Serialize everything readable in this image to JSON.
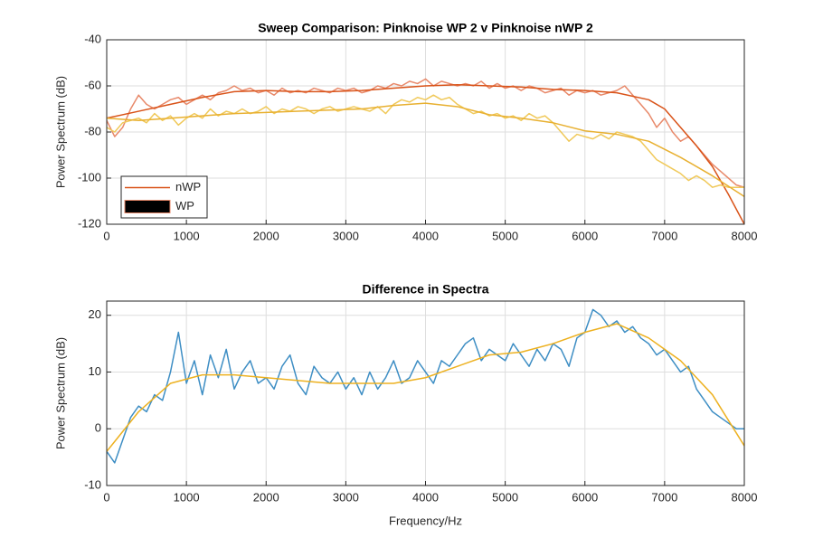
{
  "chart_data": [
    {
      "type": "line",
      "title": "Sweep Comparison: Pinknoise WP 2 v Pinknoise nWP 2",
      "ylabel": "Power Spectrum (dB)",
      "xlim": [
        0,
        8000
      ],
      "ylim": [
        -120,
        -40
      ],
      "xticks": [
        0,
        1000,
        2000,
        3000,
        4000,
        5000,
        6000,
        7000,
        8000
      ],
      "yticks": [
        -120,
        -100,
        -80,
        -60,
        -40
      ],
      "grid": true,
      "legend": "southwest",
      "series": [
        {
          "name": "nWP",
          "color": "#e8896a",
          "x": [
            0,
            100,
            200,
            300,
            400,
            500,
            600,
            700,
            800,
            900,
            1000,
            1100,
            1200,
            1300,
            1400,
            1500,
            1600,
            1700,
            1800,
            1900,
            2000,
            2100,
            2200,
            2300,
            2400,
            2500,
            2600,
            2700,
            2800,
            2900,
            3000,
            3100,
            3200,
            3300,
            3400,
            3500,
            3600,
            3700,
            3800,
            3900,
            4000,
            4100,
            4200,
            4300,
            4400,
            4500,
            4600,
            4700,
            4800,
            4900,
            5000,
            5100,
            5200,
            5300,
            5400,
            5500,
            5600,
            5700,
            5800,
            5900,
            6000,
            6100,
            6200,
            6300,
            6400,
            6500,
            6600,
            6700,
            6800,
            6900,
            7000,
            7100,
            7200,
            7300,
            7400,
            7500,
            7600,
            7700,
            7800,
            7900,
            8000
          ],
          "values": [
            -75,
            -82,
            -78,
            -70,
            -64,
            -68,
            -70,
            -68,
            -66,
            -65,
            -68,
            -66,
            -64,
            -66,
            -63,
            -62,
            -60,
            -62,
            -61,
            -63,
            -62,
            -64,
            -61,
            -63,
            -62,
            -63,
            -61,
            -62,
            -63,
            -61,
            -62,
            -61,
            -63,
            -62,
            -60,
            -61,
            -59,
            -60,
            -58,
            -59,
            -57,
            -60,
            -58,
            -59,
            -60,
            -59,
            -60,
            -58,
            -61,
            -59,
            -61,
            -60,
            -62,
            -60,
            -61,
            -63,
            -62,
            -61,
            -64,
            -62,
            -63,
            -62,
            -64,
            -63,
            -62,
            -60,
            -64,
            -68,
            -72,
            -78,
            -74,
            -80,
            -84,
            -82,
            -86,
            -90,
            -94,
            -97,
            -100,
            -103,
            -104
          ]
        },
        {
          "color": "#d95319",
          "x": [
            0,
            400,
            800,
            1200,
            1600,
            2000,
            2400,
            2800,
            3200,
            3600,
            4000,
            4400,
            4800,
            5200,
            5600,
            6000,
            6400,
            6800,
            7000,
            7200,
            7400,
            7600,
            7800,
            8000
          ],
          "values": [
            -74,
            -71,
            -68,
            -65,
            -62.5,
            -62,
            -62.5,
            -62.5,
            -62,
            -61,
            -60,
            -59.5,
            -60,
            -60.5,
            -61.5,
            -62,
            -63,
            -66,
            -70,
            -78,
            -86,
            -95,
            -107,
            -120
          ]
        },
        {
          "name": "WP",
          "color": "#f0c95a",
          "legend_symbol": "patch",
          "x": [
            0,
            100,
            200,
            300,
            400,
            500,
            600,
            700,
            800,
            900,
            1000,
            1100,
            1200,
            1300,
            1400,
            1500,
            1600,
            1700,
            1800,
            1900,
            2000,
            2100,
            2200,
            2300,
            2400,
            2500,
            2600,
            2700,
            2800,
            2900,
            3000,
            3100,
            3200,
            3300,
            3400,
            3500,
            3600,
            3700,
            3800,
            3900,
            4000,
            4100,
            4200,
            4300,
            4400,
            4500,
            4600,
            4700,
            4800,
            4900,
            5000,
            5100,
            5200,
            5300,
            5400,
            5500,
            5600,
            5700,
            5800,
            5900,
            6000,
            6100,
            6200,
            6300,
            6400,
            6500,
            6600,
            6700,
            6800,
            6900,
            7000,
            7100,
            7200,
            7300,
            7400,
            7500,
            7600,
            7700,
            7800,
            7900,
            8000
          ],
          "values": [
            -78,
            -80,
            -76,
            -75,
            -74,
            -76,
            -72,
            -75,
            -73,
            -77,
            -74,
            -72,
            -74,
            -70,
            -73,
            -71,
            -72,
            -70,
            -72,
            -71,
            -69,
            -72,
            -70,
            -71,
            -69,
            -70,
            -72,
            -70,
            -69,
            -71,
            -70,
            -69,
            -70,
            -71,
            -69,
            -72,
            -68,
            -66,
            -67,
            -65,
            -66,
            -64,
            -66,
            -65,
            -68,
            -70,
            -72,
            -71,
            -73,
            -72,
            -74,
            -73,
            -75,
            -72,
            -74,
            -73,
            -76,
            -80,
            -84,
            -81,
            -82,
            -83,
            -81,
            -83,
            -80,
            -81,
            -82,
            -84,
            -88,
            -92,
            -94,
            -96,
            -98,
            -101,
            -99,
            -101,
            -104,
            -103,
            -104,
            -104,
            -104
          ]
        },
        {
          "color": "#e8b030",
          "x": [
            0,
            400,
            800,
            1200,
            1600,
            2000,
            2400,
            2800,
            3200,
            3600,
            4000,
            4400,
            4800,
            5200,
            5600,
            6000,
            6400,
            6800,
            7200,
            7600,
            8000
          ],
          "values": [
            -74,
            -75,
            -74,
            -73,
            -72,
            -71.5,
            -71,
            -70.5,
            -70,
            -68.5,
            -67.5,
            -69,
            -72.5,
            -74,
            -76,
            -79.5,
            -81,
            -84,
            -91,
            -99,
            -108
          ]
        }
      ]
    },
    {
      "type": "line",
      "title": "Difference in Spectra",
      "ylabel": "Power Spectrum (dB)",
      "xlabel": "Frequency/Hz",
      "xlim": [
        0,
        8000
      ],
      "ylim": [
        -10,
        22.5
      ],
      "xticks": [
        0,
        1000,
        2000,
        3000,
        4000,
        5000,
        6000,
        7000,
        8000
      ],
      "yticks": [
        -10,
        0,
        10,
        20
      ],
      "grid": true,
      "series": [
        {
          "color": "#3e8ec4",
          "x": [
            0,
            100,
            200,
            300,
            400,
            500,
            600,
            700,
            800,
            900,
            1000,
            1100,
            1200,
            1300,
            1400,
            1500,
            1600,
            1700,
            1800,
            1900,
            2000,
            2100,
            2200,
            2300,
            2400,
            2500,
            2600,
            2700,
            2800,
            2900,
            3000,
            3100,
            3200,
            3300,
            3400,
            3500,
            3600,
            3700,
            3800,
            3900,
            4000,
            4100,
            4200,
            4300,
            4400,
            4500,
            4600,
            4700,
            4800,
            4900,
            5000,
            5100,
            5200,
            5300,
            5400,
            5500,
            5600,
            5700,
            5800,
            5900,
            6000,
            6100,
            6200,
            6300,
            6400,
            6500,
            6600,
            6700,
            6800,
            6900,
            7000,
            7100,
            7200,
            7300,
            7400,
            7500,
            7600,
            7700,
            7800,
            7900,
            8000
          ],
          "values": [
            -4,
            -6,
            -2,
            2,
            4,
            3,
            6,
            5,
            10,
            17,
            8,
            12,
            6,
            13,
            9,
            14,
            7,
            10,
            12,
            8,
            9,
            7,
            11,
            13,
            8,
            6,
            11,
            9,
            8,
            10,
            7,
            9,
            6,
            10,
            7,
            9,
            12,
            8,
            9,
            12,
            10,
            8,
            12,
            11,
            13,
            15,
            16,
            12,
            14,
            13,
            12,
            15,
            13,
            11,
            14,
            12,
            15,
            14,
            11,
            16,
            17,
            21,
            20,
            18,
            19,
            17,
            18,
            16,
            15,
            13,
            14,
            12,
            10,
            11,
            7,
            5,
            3,
            2,
            1,
            0,
            0
          ]
        },
        {
          "color": "#edb120",
          "x": [
            0,
            400,
            800,
            1200,
            1600,
            2000,
            2400,
            2800,
            3200,
            3600,
            4000,
            4400,
            4800,
            5200,
            5600,
            6000,
            6400,
            6800,
            7200,
            7600,
            8000
          ],
          "values": [
            -4,
            3,
            8,
            9.5,
            9.5,
            9,
            8.5,
            8,
            8,
            8,
            9,
            11,
            13,
            13.5,
            15,
            17,
            18.5,
            16,
            12,
            6,
            -3
          ]
        }
      ]
    }
  ]
}
